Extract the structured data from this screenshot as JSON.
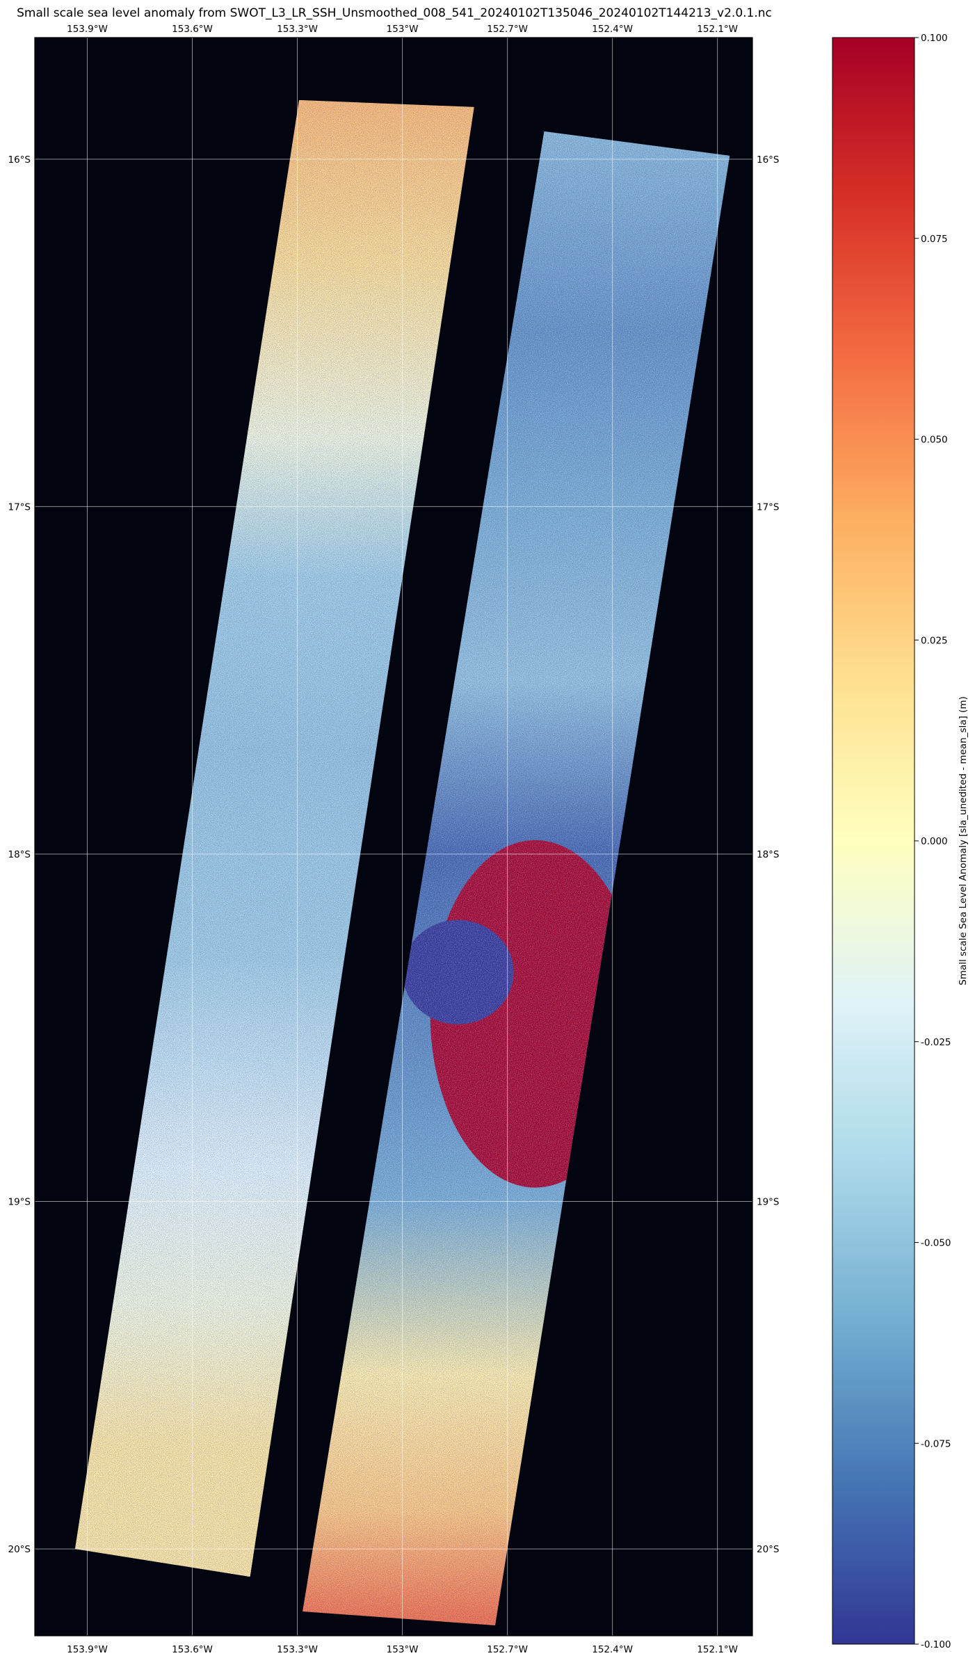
{
  "chart_data": {
    "type": "heatmap",
    "title": "Small scale sea level anomaly from SWOT_L3_LR_SSH_Unsmoothed_008_541_20240102T135046_20240102T144213_v2.0.1.nc",
    "x_ticks": [
      "153.9°W",
      "153.6°W",
      "153.3°W",
      "153°W",
      "152.7°W",
      "152.4°W",
      "152.1°W"
    ],
    "x_tick_values": [
      -153.9,
      -153.6,
      -153.3,
      -153.0,
      -152.7,
      -152.4,
      -152.1
    ],
    "y_ticks": [
      "16°S",
      "17°S",
      "18°S",
      "19°S",
      "20°S"
    ],
    "y_tick_values": [
      -16,
      -17,
      -18,
      -19,
      -20
    ],
    "xlim": [
      -154.05,
      -152.0
    ],
    "ylim": [
      -20.25,
      -15.65
    ],
    "grid": true,
    "background": "#02050f",
    "colormap": "RdYlBu_r",
    "colormap_stops": [
      "#313695",
      "#4575b4",
      "#74add1",
      "#abd9e9",
      "#e0f3f8",
      "#ffffbf",
      "#fee090",
      "#fdae61",
      "#f46d43",
      "#d73027",
      "#a50026"
    ],
    "colorbar": {
      "label": "Small scale Sea Level Anomaly [sla_unedited - mean_sla] (m)",
      "range": [
        -0.1,
        0.1
      ],
      "ticks": [
        "-0.100",
        "-0.075",
        "-0.050",
        "-0.025",
        "0.000",
        "0.025",
        "0.050",
        "0.075",
        "0.100"
      ],
      "tick_values": [
        -0.1,
        -0.075,
        -0.05,
        -0.025,
        0,
        0.025,
        0.05,
        0.075,
        0.1
      ]
    },
    "swaths": [
      {
        "name": "left",
        "corners_lonlat": [
          [
            -153.295,
            -15.83
          ],
          [
            -152.795,
            -15.85
          ],
          [
            -153.435,
            -20.08
          ],
          [
            -153.935,
            -20.0
          ]
        ],
        "anomaly_by_latitude": [
          {
            "lat": -15.85,
            "value": 0.035
          },
          {
            "lat": -16.3,
            "value": 0.02
          },
          {
            "lat": -16.8,
            "value": -0.01
          },
          {
            "lat": -17.2,
            "value": -0.045
          },
          {
            "lat": -17.7,
            "value": -0.05
          },
          {
            "lat": -18.3,
            "value": -0.045
          },
          {
            "lat": -18.9,
            "value": -0.02
          },
          {
            "lat": -19.3,
            "value": -0.01
          },
          {
            "lat": -19.7,
            "value": 0.015
          },
          {
            "lat": -20.05,
            "value": 0.015
          }
        ]
      },
      {
        "name": "right",
        "corners_lonlat": [
          [
            -152.595,
            -15.92
          ],
          [
            -152.065,
            -15.99
          ],
          [
            -152.735,
            -20.22
          ],
          [
            -153.285,
            -20.18
          ]
        ],
        "anomaly_by_latitude": [
          {
            "lat": -15.95,
            "value": -0.055
          },
          {
            "lat": -16.5,
            "value": -0.07
          },
          {
            "lat": -17.0,
            "value": -0.06
          },
          {
            "lat": -17.5,
            "value": -0.05
          },
          {
            "lat": -18.0,
            "value": -0.085
          },
          {
            "lat": -18.6,
            "value": -0.07
          },
          {
            "lat": -19.0,
            "value": -0.06
          },
          {
            "lat": -19.5,
            "value": 0.01
          },
          {
            "lat": -19.9,
            "value": 0.03
          },
          {
            "lat": -20.2,
            "value": 0.06
          }
        ],
        "positive_anomaly_region": {
          "lon": [
            -153.0,
            -152.4
          ],
          "lat": [
            -18.9,
            -17.9
          ],
          "value": 0.1
        }
      }
    ]
  }
}
